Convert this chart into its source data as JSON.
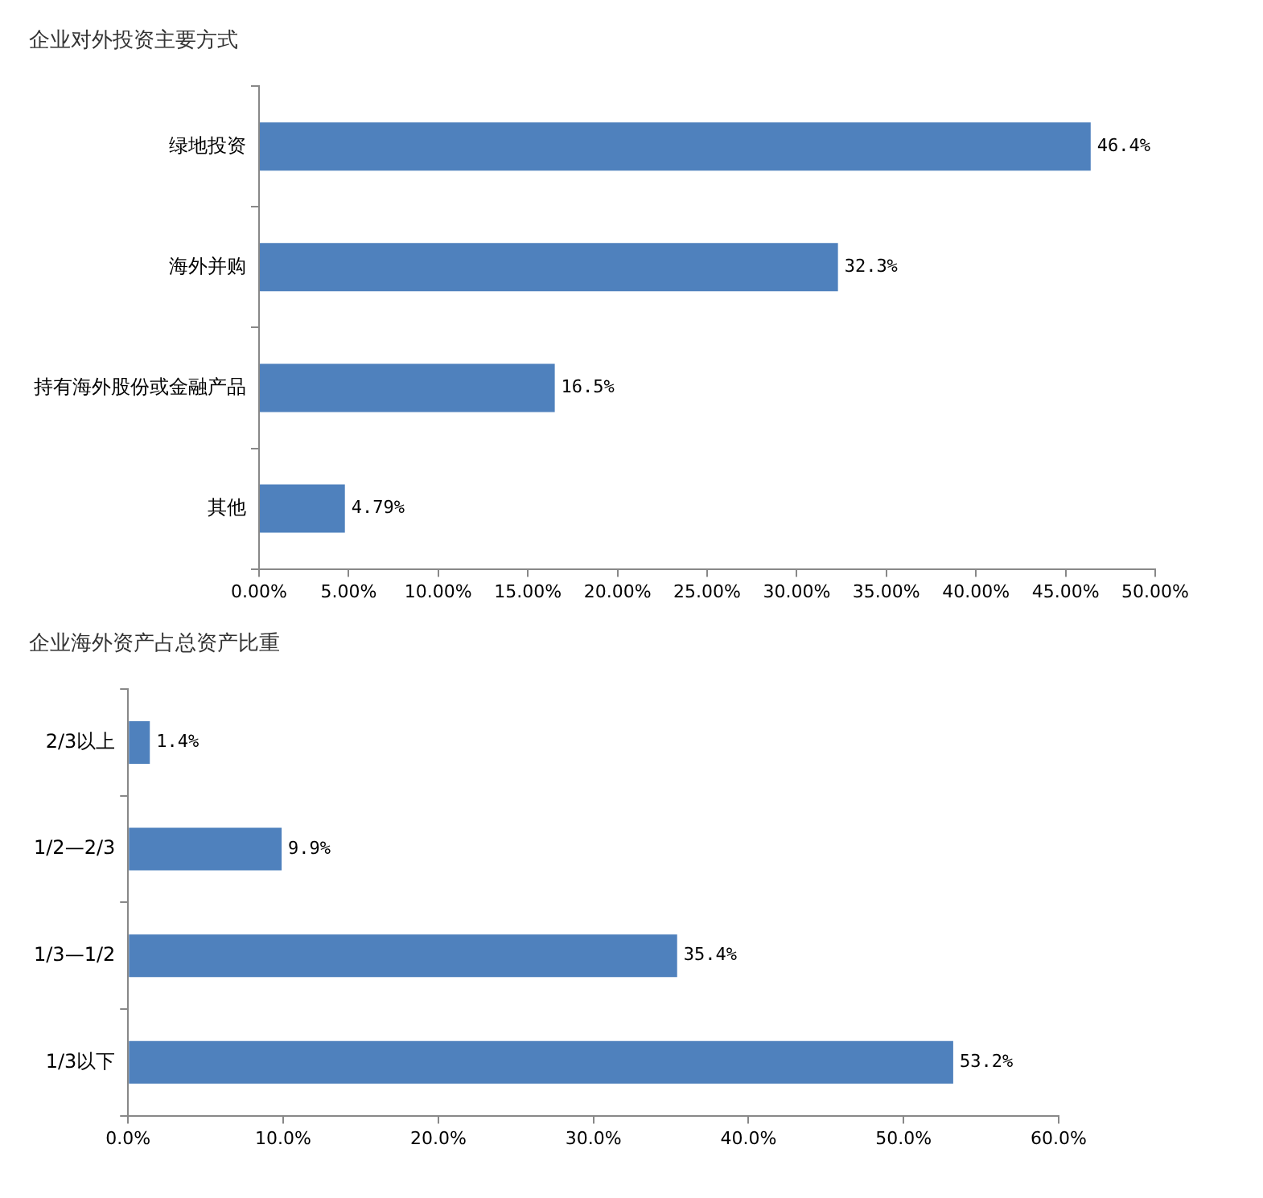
{
  "chart_data": [
    {
      "type": "bar",
      "title": "企业对外投资主要方式",
      "orientation": "horizontal",
      "categories": [
        "绿地投资",
        "海外并购",
        "持有海外股份或金融产品",
        "其他"
      ],
      "values": [
        46.4,
        32.3,
        16.5,
        4.79
      ],
      "value_labels": [
        "46.4%",
        "32.3%",
        "16.5%",
        "4.79%"
      ],
      "color": "#4f81bd",
      "xlim": [
        0,
        50
      ],
      "xticks": [
        {
          "value": 0,
          "label": "0.00%"
        },
        {
          "value": 5,
          "label": "5.00%"
        },
        {
          "value": 10,
          "label": "10.00%"
        },
        {
          "value": 15,
          "label": "15.00%"
        },
        {
          "value": 20,
          "label": "20.00%"
        },
        {
          "value": 25,
          "label": "25.00%"
        },
        {
          "value": 30,
          "label": "30.00%"
        },
        {
          "value": 35,
          "label": "35.00%"
        },
        {
          "value": 40,
          "label": "40.00%"
        },
        {
          "value": 45,
          "label": "45.00%"
        },
        {
          "value": 50,
          "label": "50.00%"
        }
      ]
    },
    {
      "type": "bar",
      "title": "企业海外资产占总资产比重",
      "orientation": "horizontal",
      "categories": [
        "2/3以上",
        "1/2—2/3",
        "1/3—1/2",
        "1/3以下"
      ],
      "values": [
        1.4,
        9.9,
        35.4,
        53.2
      ],
      "value_labels": [
        "1.4%",
        "9.9%",
        "35.4%",
        "53.2%"
      ],
      "color": "#4f81bd",
      "xlim": [
        0,
        60
      ],
      "xticks": [
        {
          "value": 0,
          "label": "0.0%"
        },
        {
          "value": 10,
          "label": "10.0%"
        },
        {
          "value": 20,
          "label": "20.0%"
        },
        {
          "value": 30,
          "label": "30.0%"
        },
        {
          "value": 40,
          "label": "40.0%"
        },
        {
          "value": 50,
          "label": "50.0%"
        },
        {
          "value": 60,
          "label": "60.0%"
        }
      ]
    }
  ]
}
